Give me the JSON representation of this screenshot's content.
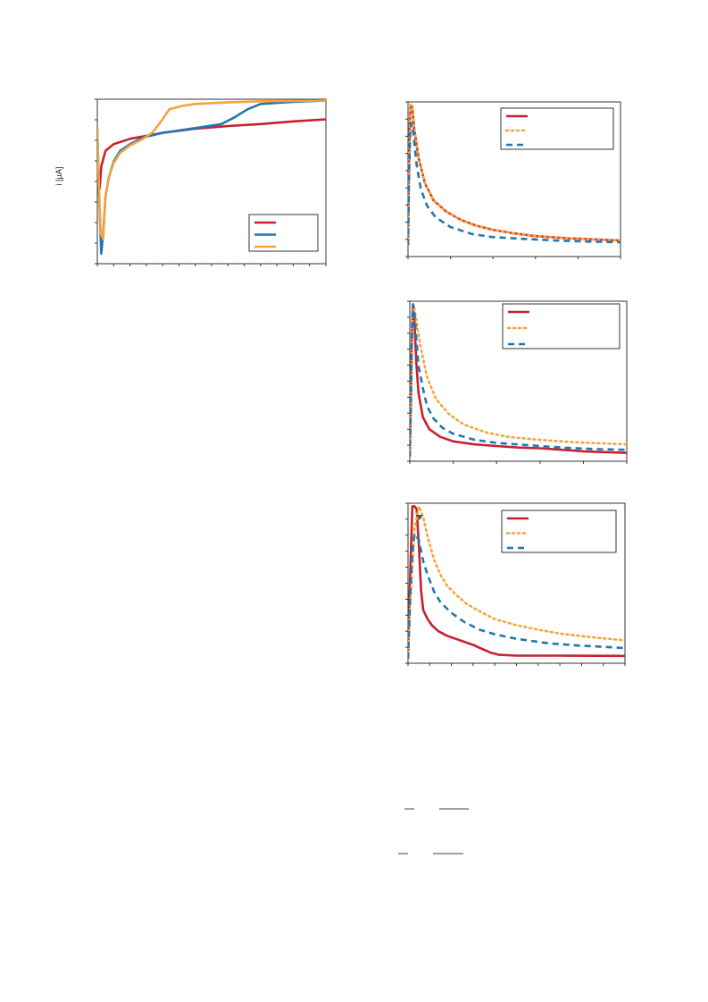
{
  "chart_data": [
    {
      "type": "line",
      "ylabel": "i [µA]",
      "xlabel": "",
      "legend": "bottom-right",
      "grid": false,
      "series": [
        {
          "color": "#c8202f",
          "dash": "solid",
          "points": [
            [
              0,
              1.0
            ],
            [
              0.3,
              0.2
            ],
            [
              0.7,
              0.12
            ],
            [
              1.2,
              0.45
            ],
            [
              2.5,
              0.68
            ],
            [
              5,
              0.78
            ],
            [
              10,
              0.86
            ],
            [
              20,
              0.95
            ],
            [
              30,
              1.01
            ],
            [
              40,
              1.05
            ],
            [
              50,
              1.08
            ],
            [
              60,
              1.12
            ],
            [
              70,
              1.15
            ]
          ]
        },
        {
          "color": "#1f77b4",
          "dash": "solid",
          "points": [
            [
              0,
              1.0
            ],
            [
              0.5,
              0.1
            ],
            [
              1.2,
              -0.85
            ],
            [
              1.8,
              -0.55
            ],
            [
              2.5,
              0.0
            ],
            [
              3.5,
              0.28
            ],
            [
              5,
              0.52
            ],
            [
              7,
              0.68
            ],
            [
              10,
              0.78
            ],
            [
              14,
              0.88
            ],
            [
              20,
              0.95
            ],
            [
              30,
              1.02
            ],
            [
              38,
              1.08
            ],
            [
              42,
              1.18
            ],
            [
              46,
              1.3
            ],
            [
              50,
              1.38
            ],
            [
              60,
              1.41
            ],
            [
              70,
              1.43
            ]
          ]
        },
        {
          "color": "#f4a53a",
          "dash": "solid",
          "points": [
            [
              0,
              1.0
            ],
            [
              0.4,
              0.3
            ],
            [
              1.0,
              -0.55
            ],
            [
              1.8,
              -0.63
            ],
            [
              2.5,
              0.0
            ],
            [
              3.5,
              0.28
            ],
            [
              5,
              0.5
            ],
            [
              7,
              0.65
            ],
            [
              10,
              0.76
            ],
            [
              14,
              0.86
            ],
            [
              17,
              0.96
            ],
            [
              20,
              1.15
            ],
            [
              22,
              1.3
            ],
            [
              26,
              1.35
            ],
            [
              30,
              1.38
            ],
            [
              38,
              1.4
            ],
            [
              50,
              1.42
            ],
            [
              70,
              1.43
            ]
          ]
        }
      ]
    },
    {
      "type": "line",
      "legend": "top-right",
      "grid": false,
      "series": [
        {
          "color": "#c8202f",
          "dash": "solid",
          "points": [
            [
              0,
              0.0
            ],
            [
              0.3,
              0.4
            ],
            [
              0.8,
              0.85
            ],
            [
              1.2,
              1.0
            ],
            [
              2,
              0.98
            ],
            [
              3,
              0.82
            ],
            [
              5,
              0.62
            ],
            [
              8,
              0.44
            ],
            [
              12,
              0.32
            ],
            [
              18,
              0.24
            ],
            [
              25,
              0.18
            ],
            [
              32,
              0.14
            ],
            [
              40,
              0.11
            ],
            [
              50,
              0.085
            ],
            [
              60,
              0.065
            ],
            [
              75,
              0.05
            ],
            [
              90,
              0.04
            ],
            [
              100,
              0.034
            ]
          ]
        },
        {
          "color": "#f4a53a",
          "dash": "dotted",
          "points": [
            [
              0,
              0.0
            ],
            [
              0.3,
              0.4
            ],
            [
              0.8,
              0.85
            ],
            [
              1.2,
              1.0
            ],
            [
              2,
              0.98
            ],
            [
              3,
              0.82
            ],
            [
              5,
              0.62
            ],
            [
              8,
              0.44
            ],
            [
              12,
              0.32
            ],
            [
              18,
              0.24
            ],
            [
              25,
              0.18
            ],
            [
              32,
              0.14
            ],
            [
              40,
              0.11
            ],
            [
              50,
              0.085
            ],
            [
              60,
              0.065
            ],
            [
              75,
              0.05
            ],
            [
              90,
              0.04
            ],
            [
              100,
              0.034
            ]
          ]
        },
        {
          "color": "#1f77b4",
          "dash": "dashed",
          "points": [
            [
              0,
              0.0
            ],
            [
              0.5,
              0.5
            ],
            [
              1.0,
              0.8
            ],
            [
              1.6,
              0.87
            ],
            [
              2.5,
              0.8
            ],
            [
              4,
              0.58
            ],
            [
              6,
              0.4
            ],
            [
              9,
              0.28
            ],
            [
              13,
              0.2
            ],
            [
              20,
              0.13
            ],
            [
              30,
              0.08
            ],
            [
              40,
              0.058
            ],
            [
              55,
              0.045
            ],
            [
              70,
              0.034
            ],
            [
              85,
              0.026
            ],
            [
              100,
              0.022
            ]
          ]
        }
      ]
    },
    {
      "type": "line",
      "legend": "top-right",
      "grid": false,
      "series": [
        {
          "color": "#c8202f",
          "dash": "solid",
          "points": [
            [
              0,
              0.0
            ],
            [
              0.5,
              0.35
            ],
            [
              1.0,
              0.8
            ],
            [
              1.5,
              1.0
            ],
            [
              2,
              0.92
            ],
            [
              3,
              0.62
            ],
            [
              4,
              0.42
            ],
            [
              6,
              0.26
            ],
            [
              9,
              0.18
            ],
            [
              14,
              0.13
            ],
            [
              20,
              0.1
            ],
            [
              30,
              0.08
            ],
            [
              40,
              0.07
            ],
            [
              50,
              0.06
            ],
            [
              60,
              0.055
            ],
            [
              70,
              0.045
            ],
            [
              80,
              0.035
            ],
            [
              90,
              0.03
            ],
            [
              100,
              0.025
            ]
          ]
        },
        {
          "color": "#f4a53a",
          "dash": "dotted",
          "points": [
            [
              0,
              0.0
            ],
            [
              0.5,
              0.35
            ],
            [
              1.0,
              0.75
            ],
            [
              1.5,
              0.95
            ],
            [
              2,
              0.98
            ],
            [
              3,
              0.9
            ],
            [
              5,
              0.72
            ],
            [
              8,
              0.52
            ],
            [
              12,
              0.38
            ],
            [
              18,
              0.28
            ],
            [
              25,
              0.21
            ],
            [
              35,
              0.16
            ],
            [
              45,
              0.13
            ],
            [
              60,
              0.11
            ],
            [
              75,
              0.095
            ],
            [
              100,
              0.08
            ]
          ]
        },
        {
          "color": "#1f77b4",
          "dash": "dashed",
          "points": [
            [
              0,
              0.0
            ],
            [
              0.5,
              0.4
            ],
            [
              1.0,
              0.85
            ],
            [
              1.5,
              1.0
            ],
            [
              2,
              0.97
            ],
            [
              3,
              0.78
            ],
            [
              4,
              0.6
            ],
            [
              6,
              0.45
            ],
            [
              8,
              0.33
            ],
            [
              11,
              0.25
            ],
            [
              15,
              0.19
            ],
            [
              20,
              0.15
            ],
            [
              30,
              0.11
            ],
            [
              40,
              0.09
            ],
            [
              55,
              0.075
            ],
            [
              70,
              0.06
            ],
            [
              85,
              0.05
            ],
            [
              100,
              0.045
            ]
          ]
        }
      ]
    },
    {
      "type": "line",
      "legend": "top-right",
      "grid": false,
      "series": [
        {
          "color": "#c8202f",
          "dash": "solid",
          "points": [
            [
              0,
              0.0
            ],
            [
              1,
              0.55
            ],
            [
              2,
              1.0
            ],
            [
              3,
              1.0
            ],
            [
              4,
              0.98
            ],
            [
              5,
              0.75
            ],
            [
              6,
              0.45
            ],
            [
              7,
              0.32
            ],
            [
              9,
              0.26
            ],
            [
              11,
              0.22
            ],
            [
              14,
              0.18
            ],
            [
              18,
              0.15
            ],
            [
              22,
              0.13
            ],
            [
              26,
              0.11
            ],
            [
              30,
              0.09
            ],
            [
              34,
              0.065
            ],
            [
              38,
              0.04
            ],
            [
              42,
              0.025
            ],
            [
              50,
              0.02
            ],
            [
              70,
              0.02
            ],
            [
              100,
              0.018
            ]
          ]
        },
        {
          "color": "#f4a53a",
          "dash": "dotted",
          "points": [
            [
              0,
              0.0
            ],
            [
              1,
              0.35
            ],
            [
              3,
              0.85
            ],
            [
              5,
              1.0
            ],
            [
              7,
              0.93
            ],
            [
              9,
              0.8
            ],
            [
              12,
              0.65
            ],
            [
              15,
              0.55
            ],
            [
              18,
              0.48
            ],
            [
              22,
              0.42
            ],
            [
              27,
              0.36
            ],
            [
              33,
              0.31
            ],
            [
              40,
              0.26
            ],
            [
              50,
              0.22
            ],
            [
              60,
              0.19
            ],
            [
              70,
              0.165
            ],
            [
              85,
              0.14
            ],
            [
              100,
              0.12
            ]
          ]
        },
        {
          "color": "#1f77b4",
          "dash": "dashed",
          "points": [
            [
              0,
              0.0
            ],
            [
              1,
              0.4
            ],
            [
              2,
              0.7
            ],
            [
              3,
              0.82
            ],
            [
              5,
              0.78
            ],
            [
              7,
              0.64
            ],
            [
              9,
              0.55
            ],
            [
              12,
              0.44
            ],
            [
              15,
              0.37
            ],
            [
              20,
              0.3
            ],
            [
              26,
              0.24
            ],
            [
              33,
              0.19
            ],
            [
              40,
              0.16
            ],
            [
              50,
              0.13
            ],
            [
              65,
              0.1
            ],
            [
              80,
              0.085
            ],
            [
              100,
              0.07
            ]
          ]
        }
      ]
    }
  ]
}
